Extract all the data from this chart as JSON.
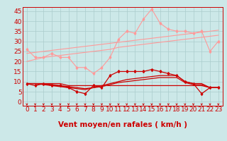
{
  "xlabel": "Vent moyen/en rafales ( km/h )",
  "background_color": "#cce8e8",
  "grid_color": "#aacccc",
  "x": [
    0,
    1,
    2,
    3,
    4,
    5,
    6,
    7,
    8,
    9,
    10,
    11,
    12,
    13,
    14,
    15,
    16,
    17,
    18,
    19,
    20,
    21,
    22,
    23
  ],
  "yticks": [
    0,
    5,
    10,
    15,
    20,
    25,
    30,
    35,
    40,
    45
  ],
  "ylim": [
    -2,
    47
  ],
  "xlim": [
    -0.5,
    23.5
  ],
  "light_pink": "#ff9999",
  "dark_red": "#cc0000",
  "gust_jagged_y": [
    26,
    22,
    22,
    24,
    22,
    22,
    17,
    17,
    14,
    17,
    22,
    31,
    35,
    34,
    41,
    46,
    39,
    36,
    35,
    35,
    34,
    35,
    25,
    30
  ],
  "trend1_y": [
    20,
    21,
    22,
    22.5,
    23,
    23.5,
    24,
    24.5,
    25,
    25.5,
    26,
    27,
    27.5,
    28,
    28.5,
    29,
    29.5,
    30,
    30.5,
    31,
    31.5,
    32,
    32.5,
    33
  ],
  "trend2_y": [
    24,
    24.5,
    25,
    25.5,
    26,
    26.5,
    27,
    27.5,
    28,
    28.5,
    29,
    29.5,
    30,
    30.5,
    31,
    31.5,
    32,
    32.5,
    33,
    33.5,
    34,
    34.5,
    35,
    35.5
  ],
  "wind_jagged_y": [
    9,
    8,
    9,
    8,
    8,
    7,
    5,
    4,
    8,
    7,
    13,
    15,
    15,
    15,
    15,
    16,
    15,
    14,
    13,
    10,
    9,
    4,
    7,
    7
  ],
  "wind_smooth1_y": [
    9,
    9,
    9,
    8.5,
    8,
    7.5,
    7,
    6.5,
    7,
    8,
    9,
    10,
    11,
    11.5,
    12,
    12.5,
    13,
    13,
    13,
    10,
    9,
    9,
    7,
    7
  ],
  "wind_smooth2_y": [
    9,
    9,
    8.5,
    8,
    7.5,
    7,
    6.5,
    6,
    7,
    7.5,
    8.5,
    9.5,
    10,
    10.5,
    11,
    11.5,
    12,
    12,
    12,
    9.5,
    8.5,
    8.5,
    7,
    7
  ],
  "wind_flat_y": [
    9,
    9,
    9,
    9,
    9,
    8,
    8,
    8,
    8,
    8,
    8,
    8,
    8,
    8,
    8,
    8,
    8,
    8,
    8,
    8,
    8,
    8,
    7,
    7
  ],
  "tick_label_color": "#cc0000",
  "axis_label_color": "#cc0000",
  "font_size_ticks": 6.5,
  "font_size_xlabel": 7.5
}
